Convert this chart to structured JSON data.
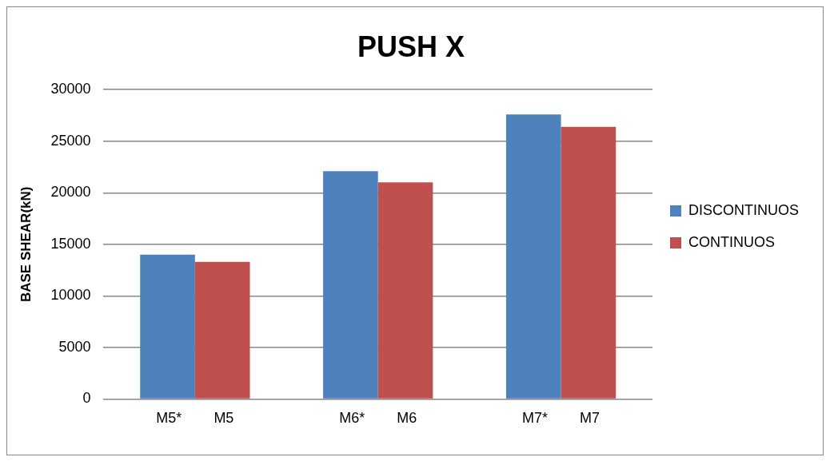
{
  "chart_data": {
    "type": "bar",
    "title": "PUSH X",
    "ylabel": "BASE SHEAR(kN)",
    "categories": [
      "M5*        M5",
      "M6*        M6",
      "M7*        M7"
    ],
    "series": [
      {
        "name": "DISCONTINUOS",
        "color": "#4f81bd",
        "values": [
          14000,
          22100,
          27600
        ]
      },
      {
        "name": "CONTINUOS",
        "color": "#c0504d",
        "values": [
          13300,
          21000,
          26400
        ]
      }
    ],
    "ylim": [
      0,
      30000
    ],
    "yticks": [
      0,
      5000,
      10000,
      15000,
      20000,
      25000,
      30000
    ],
    "grid": "y",
    "legend": "right"
  }
}
